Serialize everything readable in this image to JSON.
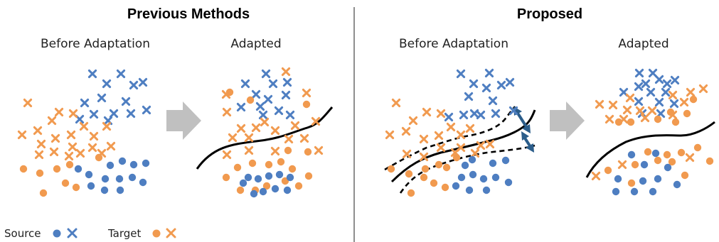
{
  "left_panel": {
    "title": "Previous Methods",
    "before_label": "Before Adaptation",
    "after_label": "Adapted"
  },
  "right_panel": {
    "title": "Proposed",
    "before_label": "Before Adaptation",
    "after_label": "Adapted"
  },
  "legend": {
    "source_label": "Source",
    "target_label": "Target"
  },
  "colors": {
    "source": "#4e7ec1",
    "target": "#f19a4f",
    "arrow": "#c0c0c0",
    "double_arrow": "#2b5d8a",
    "boundary": "#000000"
  },
  "markers": {
    "circle": "circle",
    "cross": "cross"
  }
}
